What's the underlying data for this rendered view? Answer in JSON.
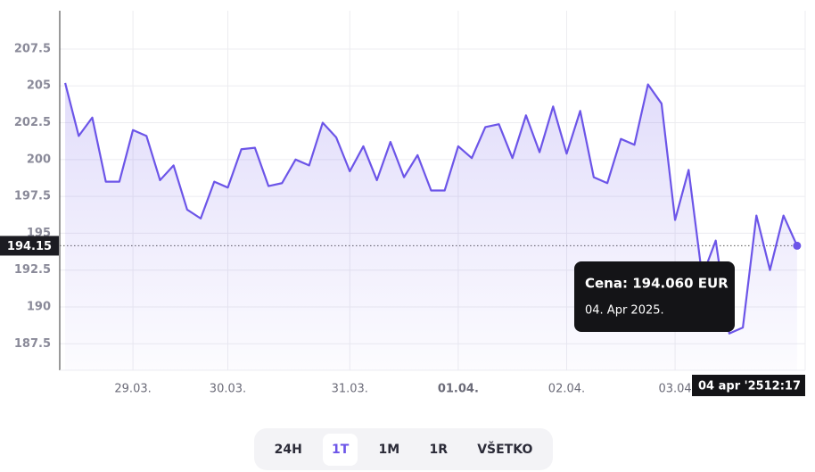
{
  "chart_data": {
    "type": "line",
    "series": [
      {
        "color": "#6c55e8",
        "values": [
          205.2,
          201.6,
          202.85,
          198.5,
          198.5,
          202.0,
          201.6,
          198.6,
          199.6,
          196.6,
          196.0,
          198.5,
          198.1,
          200.7,
          200.8,
          198.2,
          198.4,
          200.0,
          199.6,
          202.5,
          201.5,
          199.2,
          200.9,
          198.6,
          201.2,
          198.8,
          200.3,
          197.9,
          197.9,
          200.9,
          200.1,
          202.2,
          202.4,
          200.1,
          203.0,
          200.5,
          203.6,
          200.4,
          203.3,
          198.8,
          198.4,
          201.4,
          201.0,
          205.1,
          203.8,
          195.9,
          199.3,
          192.05,
          194.5,
          188.2,
          188.6,
          196.2,
          192.5,
          196.2,
          194.15
        ]
      }
    ],
    "ylim": [
      185.7,
      210.1
    ],
    "yticks": [
      187.5,
      190,
      192.5,
      195,
      197.5,
      200,
      202.5,
      205,
      207.5
    ],
    "xlim": [
      -0.4,
      54.6
    ],
    "xticks": [
      {
        "value": 5,
        "label": "29.03."
      },
      {
        "value": 12,
        "label": "30.03."
      },
      {
        "value": 21,
        "label": "31.03."
      },
      {
        "value": 29,
        "label": "01.04.",
        "bold": true
      },
      {
        "value": 37,
        "label": "02.04."
      },
      {
        "value": 45,
        "label": "03.04"
      }
    ],
    "grid": true,
    "last_price": 194.15,
    "tooltip": {
      "title": "Cena: 194.060 EUR",
      "date": "04. Apr 2025."
    },
    "crosshair": {
      "date": "04 apr '25",
      "time": "12:17"
    }
  },
  "range_buttons": {
    "options": [
      "24H",
      "1T",
      "1M",
      "1R",
      "VŠETKO"
    ],
    "active": "1T"
  }
}
